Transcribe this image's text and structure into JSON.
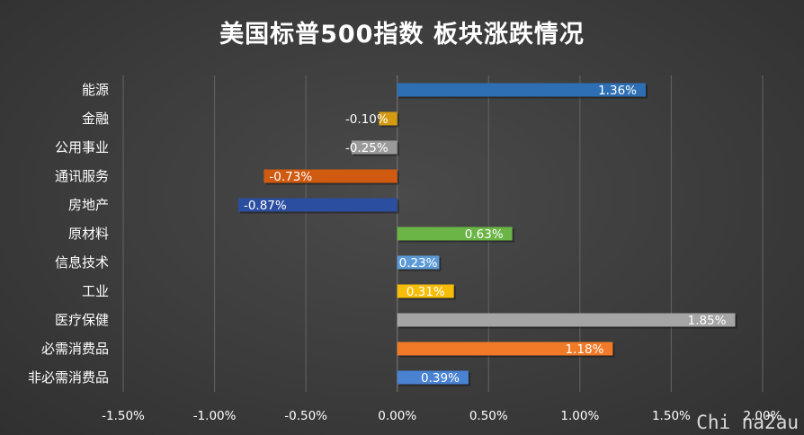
{
  "chart_data": {
    "type": "bar",
    "orientation": "horizontal",
    "title": "美国标普500指数 板块涨跌情况",
    "xlabel": "",
    "ylabel": "",
    "xlim": [
      -0.015,
      0.02
    ],
    "ticks": [
      -0.015,
      -0.01,
      -0.005,
      0,
      0.005,
      0.01,
      0.015,
      0.02
    ],
    "tick_labels": [
      "-1.50%",
      "-1.00%",
      "-0.50%",
      "0.00%",
      "0.50%",
      "1.00%",
      "1.50%",
      "2.00%"
    ],
    "grid": true,
    "categories": [
      "能源",
      "金融",
      "公用事业",
      "通讯服务",
      "房地产",
      "原材料",
      "信息技术",
      "工业",
      "医疗保健",
      "必需消费品",
      "非必需消费品"
    ],
    "values": [
      0.0136,
      -0.001,
      -0.0025,
      -0.0073,
      -0.0087,
      0.0063,
      0.0023,
      0.0031,
      0.0185,
      0.0118,
      0.0039
    ],
    "data_labels": [
      "1.36%",
      "-0.10%",
      "-0.25%",
      "-0.73%",
      "-0.87%",
      "0.63%",
      "0.23%",
      "0.31%",
      "1.85%",
      "1.18%",
      "0.39%"
    ],
    "colors": [
      "#2e6fb4",
      "#d49a12",
      "#9a9a9a",
      "#d05a10",
      "#2b4ea0",
      "#6ab545",
      "#5b9ad6",
      "#f5bd08",
      "#a5a5a5",
      "#f07a28",
      "#4a82d2"
    ]
  },
  "watermark": "Chi na2au"
}
